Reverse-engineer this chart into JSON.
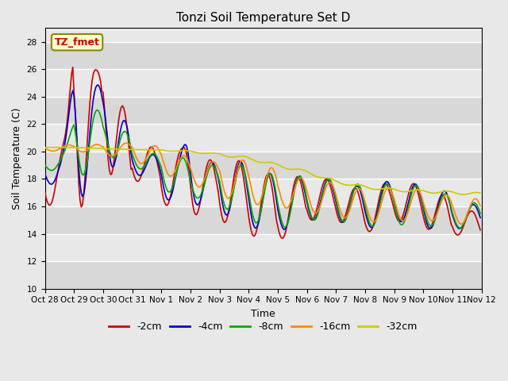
{
  "title": "Tonzi Soil Temperature Set D",
  "xlabel": "Time",
  "ylabel": "Soil Temperature (C)",
  "ylim": [
    10,
    29
  ],
  "yticks": [
    10,
    12,
    14,
    16,
    18,
    20,
    22,
    24,
    26,
    28
  ],
  "xtick_labels": [
    "Oct 28",
    "Oct 29",
    "Oct 30",
    "Oct 31",
    "Nov 1",
    "Nov 2",
    "Nov 3",
    "Nov 4",
    "Nov 5",
    "Nov 6",
    "Nov 7",
    "Nov 8",
    "Nov 9",
    "Nov 10",
    "Nov 11",
    "Nov 12"
  ],
  "legend_labels": [
    "-2cm",
    "-4cm",
    "-8cm",
    "-16cm",
    "-32cm"
  ],
  "legend_colors": [
    "#cc0000",
    "#0000cc",
    "#00aa00",
    "#ff8800",
    "#cccc00"
  ],
  "background_color": "#e8e8e8",
  "grid_color": "#ffffff",
  "annotation_text": "TZ_fmet",
  "annotation_color": "#cc0000",
  "annotation_bg": "#ffffcc"
}
